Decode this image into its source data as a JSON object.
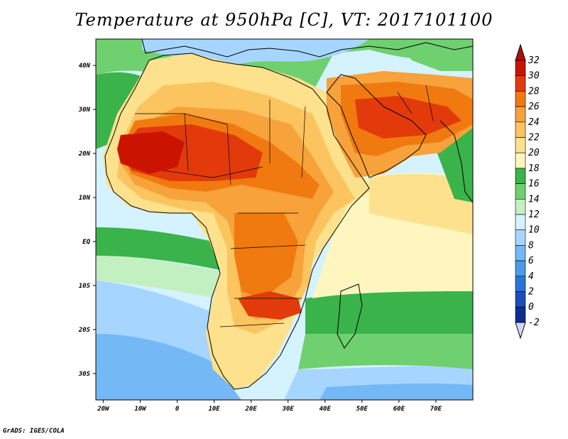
{
  "title": "Temperature at 950hPa [C], VT: 2017101100",
  "footer": "GrADS: IGES/COLA",
  "map": {
    "lon_range": [
      -22,
      80
    ],
    "lat_range": [
      -36,
      46
    ],
    "lat_ticks": [
      {
        "value": 40,
        "label": "40N"
      },
      {
        "value": 30,
        "label": "30N"
      },
      {
        "value": 20,
        "label": "20N"
      },
      {
        "value": 10,
        "label": "10N"
      },
      {
        "value": 0,
        "label": "EQ"
      },
      {
        "value": -10,
        "label": "10S"
      },
      {
        "value": -20,
        "label": "20S"
      },
      {
        "value": -30,
        "label": "30S"
      }
    ],
    "lon_ticks": [
      {
        "value": -20,
        "label": "20W"
      },
      {
        "value": -10,
        "label": "10W"
      },
      {
        "value": 0,
        "label": "0"
      },
      {
        "value": 10,
        "label": "10E"
      },
      {
        "value": 20,
        "label": "20E"
      },
      {
        "value": 30,
        "label": "30E"
      },
      {
        "value": 40,
        "label": "40E"
      },
      {
        "value": 50,
        "label": "50E"
      },
      {
        "value": 60,
        "label": "60E"
      },
      {
        "value": 70,
        "label": "70E"
      }
    ]
  },
  "colorbar": {
    "levels": [
      {
        "value": "32",
        "color": "#ca1400"
      },
      {
        "value": "30",
        "color": "#e33a0b"
      },
      {
        "value": "28",
        "color": "#f07a10"
      },
      {
        "value": "26",
        "color": "#f7a23a"
      },
      {
        "value": "24",
        "color": "#fbc45f"
      },
      {
        "value": "22",
        "color": "#fde18d"
      },
      {
        "value": "20",
        "color": "#fff6bf"
      },
      {
        "value": "18",
        "color": "#3ab34a"
      },
      {
        "value": "16",
        "color": "#6fd06f"
      },
      {
        "value": "14",
        "color": "#c3f0c0"
      },
      {
        "value": "12",
        "color": "#d4f2ff"
      },
      {
        "value": "10",
        "color": "#a6d6ff"
      },
      {
        "value": "8",
        "color": "#74b8f6"
      },
      {
        "value": "6",
        "color": "#4a9bea"
      },
      {
        "value": "4",
        "color": "#2a74d8"
      },
      {
        "value": "2",
        "color": "#1950b8"
      },
      {
        "value": "0",
        "color": "#0d2d8f"
      },
      {
        "value": "-2",
        "color": "#0a1a6a"
      }
    ],
    "top_arrow_color": "#b21000",
    "bottom_arrow_color": "#d8d4f8"
  },
  "fields": {
    "cold": {
      "color": "#74b8f6",
      "level": 8
    },
    "cool": {
      "color": "#a6d6ff",
      "level": 10
    },
    "ocean": {
      "color": "#d4f2ff",
      "level": 12
    },
    "mint": {
      "color": "#c3f0c0",
      "level": 14
    },
    "green": {
      "color": "#6fd06f",
      "level": 16
    },
    "dgreen": {
      "color": "#3ab34a",
      "level": 18
    },
    "pale": {
      "color": "#fff6bf",
      "level": 20
    },
    "yellow": {
      "color": "#fde18d",
      "level": 22
    },
    "lorange": {
      "color": "#fbc45f",
      "level": 24
    },
    "orange": {
      "color": "#f7a23a",
      "level": 26
    },
    "dorange": {
      "color": "#f07a10",
      "level": 28
    },
    "red": {
      "color": "#e33a0b",
      "level": 30
    },
    "dred": {
      "color": "#ca1400",
      "level": 32
    }
  }
}
